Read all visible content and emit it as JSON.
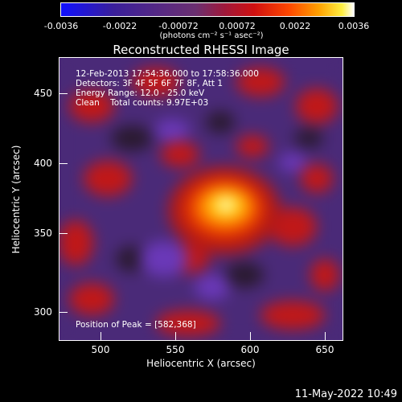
{
  "colorbar": {
    "tick_labels": [
      "-0.0036",
      "-0.0022",
      "-0.00072",
      "0.00072",
      "0.0022",
      "0.0036"
    ],
    "unit_text": "(photons cm⁻² s⁻¹ asec⁻²)"
  },
  "title": "Reconstructed RHESSI Image",
  "info": {
    "time": "12-Feb-2013 17:54:36.000 to 17:58:36.000",
    "detectors": "Detectors: 3F 4F 5F 6F 7F 8F, Att 1",
    "energy": "Energy Range: 12.0 - 25.0 keV",
    "clean": "Clean    Total counts: 9.97E+03",
    "peak": "Position of Peak = [582,368]"
  },
  "axes": {
    "xlabel": "Heliocentric X (arcsec)",
    "ylabel": "Heliocentric Y (arcsec)",
    "xticks": [
      "500",
      "550",
      "600",
      "650"
    ],
    "yticks": [
      "450",
      "400",
      "350",
      "300"
    ]
  },
  "datestamp": "11-May-2022 10:49",
  "colors": {
    "background": "#000000",
    "text": "#ffffff",
    "peak": "#ffffff"
  }
}
